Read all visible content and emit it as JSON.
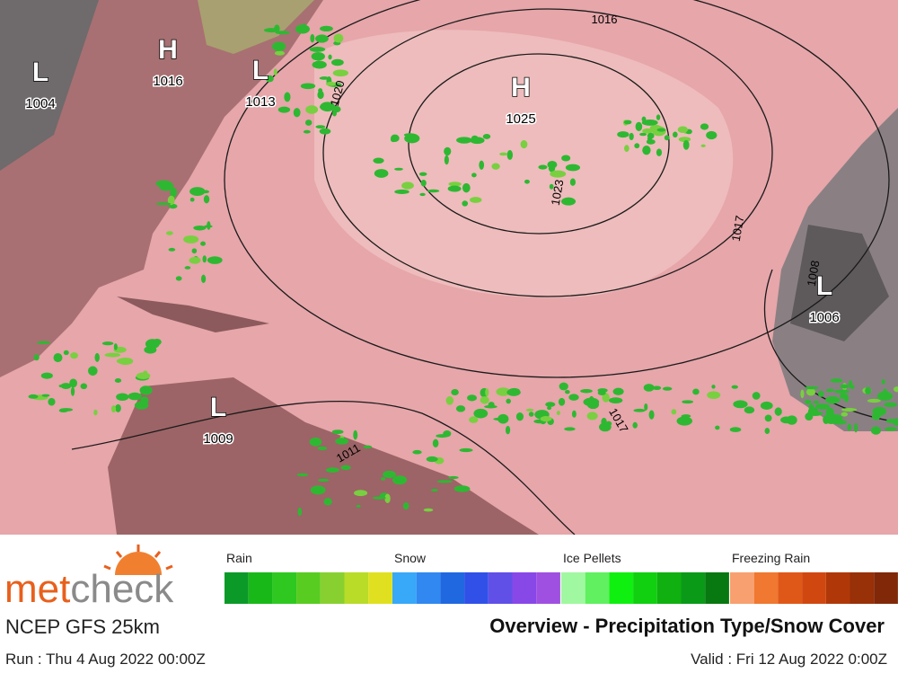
{
  "brand": {
    "name_part1": "met",
    "name_part2": "check"
  },
  "model": "NCEP GFS 25km",
  "product_title": "Overview - Precipitation Type/Snow Cover",
  "run": "Run : Thu 4 Aug 2022 00:00Z",
  "valid": "Valid : Fri 12 Aug 2022 0:00Z",
  "pressure_centers": [
    {
      "letter": "L",
      "value": "1004"
    },
    {
      "letter": "H",
      "value": "1016"
    },
    {
      "letter": "L",
      "value": "1013"
    },
    {
      "letter": "H",
      "value": "1025"
    },
    {
      "letter": "L",
      "value": "1006"
    },
    {
      "letter": "L",
      "value": "1009"
    }
  ],
  "isobar_labels": [
    "1016",
    "1020",
    "1023",
    "1017",
    "1008",
    "1017",
    "1011"
  ],
  "legend": [
    {
      "label": "Rain",
      "colors": [
        "#0b9a28",
        "#18b818",
        "#2ec820",
        "#58cc20",
        "#88d030",
        "#b8dc28",
        "#e0e020"
      ]
    },
    {
      "label": "Snow",
      "colors": [
        "#38a8f8",
        "#3088f0",
        "#2068e0",
        "#3050e8",
        "#6050e8",
        "#8848e8",
        "#a050e0"
      ]
    },
    {
      "label": "Ice Pellets",
      "colors": [
        "#a0f8a0",
        "#60f060",
        "#10f010",
        "#10d010",
        "#10b010",
        "#0a9a18",
        "#087810"
      ]
    },
    {
      "label": "Freezing Rain",
      "colors": [
        "#f8a070",
        "#f07830",
        "#e05818",
        "#d04810",
        "#b03808",
        "#983008",
        "#802808"
      ]
    }
  ]
}
